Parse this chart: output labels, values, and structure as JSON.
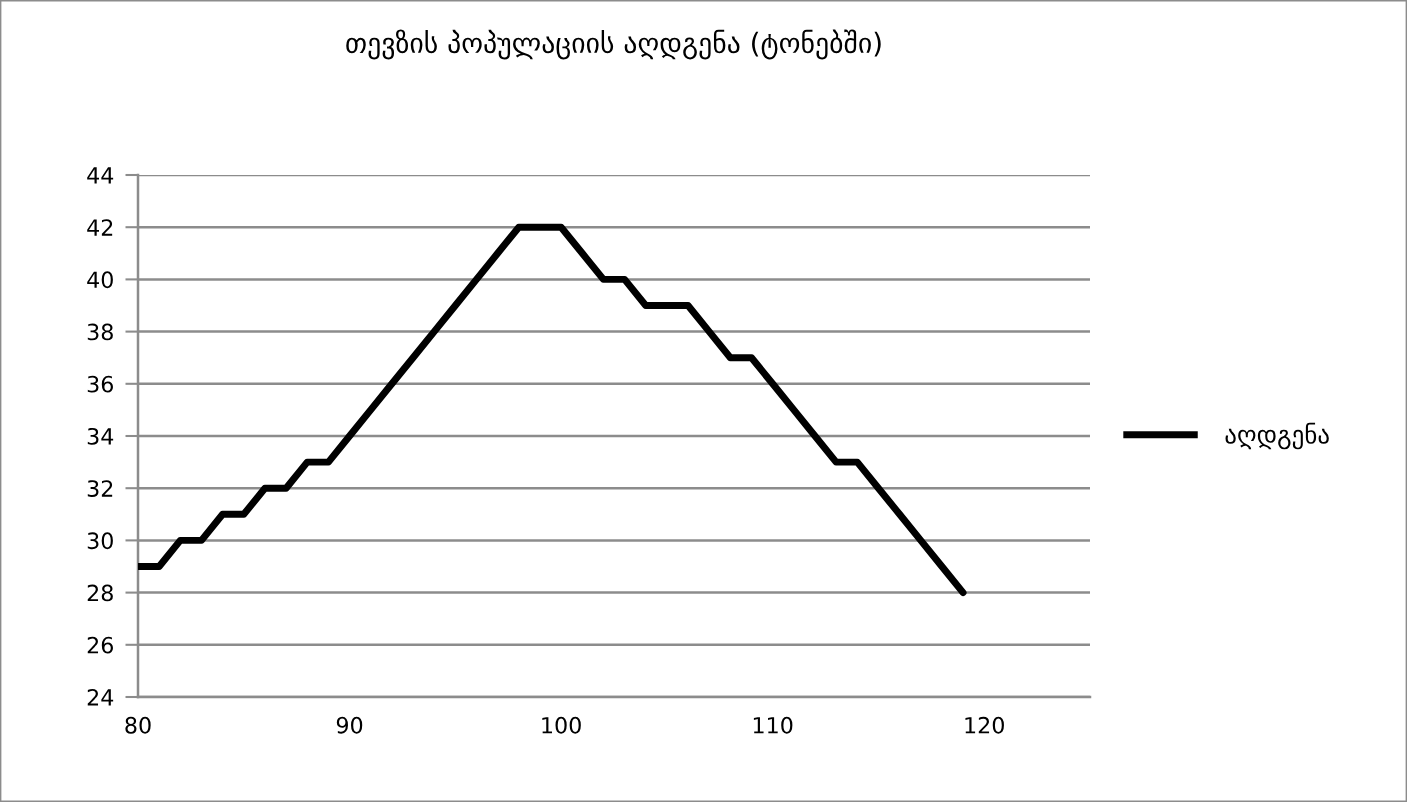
{
  "chart_data": {
    "type": "line",
    "title": "თევზის პოპულაციის აღდგენა (ტონებში)",
    "x": [
      80,
      81,
      82,
      83,
      84,
      85,
      86,
      87,
      88,
      89,
      90,
      91,
      92,
      93,
      94,
      95,
      96,
      97,
      98,
      99,
      100,
      101,
      102,
      103,
      104,
      105,
      106,
      107,
      108,
      109,
      110,
      111,
      112,
      113,
      114,
      115,
      116,
      117,
      118,
      119
    ],
    "series": [
      {
        "name": "აღდგენა",
        "color": "#000000",
        "values": [
          29,
          29,
          30,
          30,
          31,
          31,
          32,
          32,
          33,
          33,
          34,
          35,
          36,
          37,
          38,
          39,
          40,
          41,
          42,
          42,
          42,
          41,
          40,
          40,
          39,
          39,
          39,
          38,
          37,
          37,
          36,
          35,
          34,
          33,
          33,
          32,
          31,
          30,
          29,
          28
        ]
      }
    ],
    "xlim": [
      80,
      125
    ],
    "ylim": [
      24,
      44
    ],
    "xticks": [
      80,
      90,
      100,
      110,
      120
    ],
    "yticks": [
      24,
      26,
      28,
      30,
      32,
      34,
      36,
      38,
      40,
      42,
      44
    ],
    "grid": "y",
    "legend": "right",
    "line_style": "solid"
  }
}
